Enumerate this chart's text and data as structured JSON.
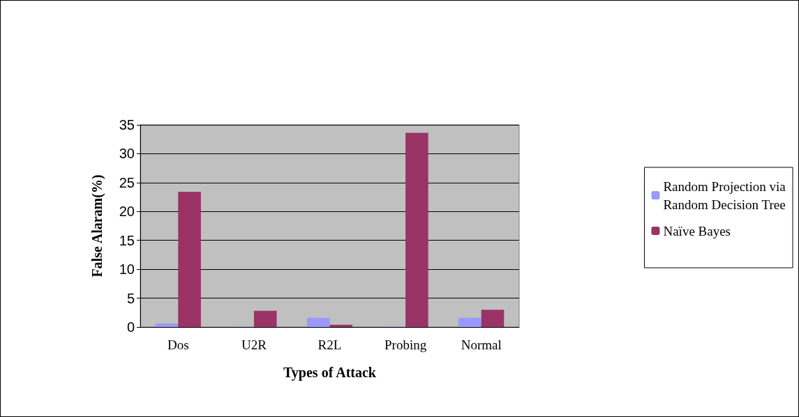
{
  "chart_data": {
    "type": "bar",
    "xlabel": "Types of Attack",
    "ylabel": "False Alaram(%)",
    "categories": [
      "Dos",
      "U2R",
      "R2L",
      "Probing",
      "Normal"
    ],
    "series": [
      {
        "name": "Random Projection via\nRandom Decision Tree",
        "color": "#9999ff",
        "values": [
          0.6,
          0.1,
          1.6,
          0.1,
          1.6
        ]
      },
      {
        "name": "Naïve Bayes",
        "color": "#993366",
        "values": [
          23.4,
          2.8,
          0.4,
          33.6,
          3.0
        ]
      }
    ],
    "ylim": [
      0,
      35
    ],
    "yticks": [
      0,
      5,
      10,
      15,
      20,
      25,
      30,
      35
    ],
    "grid": "y",
    "legend": "right"
  }
}
